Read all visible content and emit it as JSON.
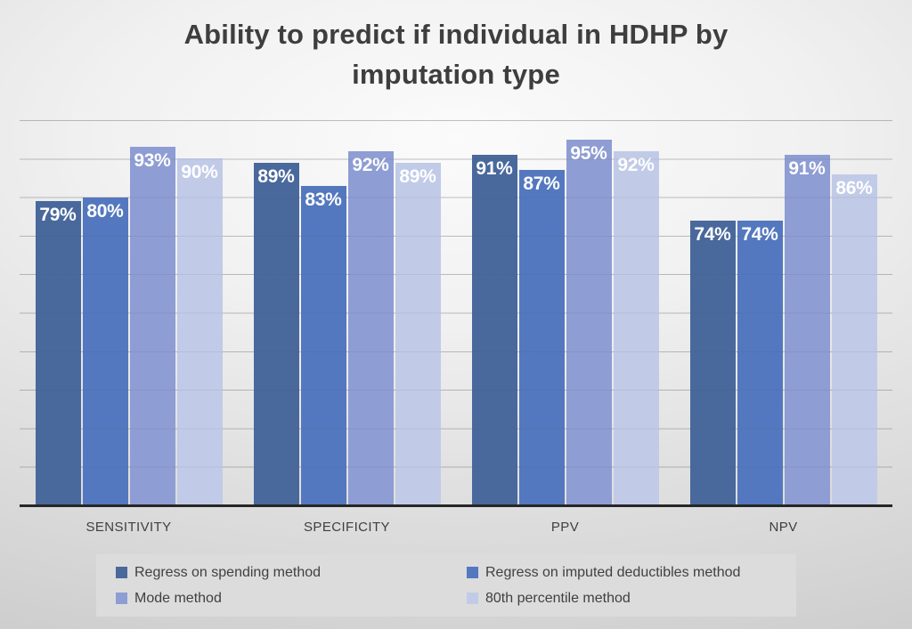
{
  "title": "Ability to predict if individual in HDHP by imputation type",
  "title_lines": {
    "line1": "Ability to predict if individual in HDHP by",
    "line2": "imputation type"
  },
  "chart_data": {
    "type": "bar",
    "title": "Ability to predict if individual in HDHP by imputation type",
    "categories": [
      "SENSITIVITY",
      "SPECIFICITY",
      "PPV",
      "NPV"
    ],
    "series": [
      {
        "name": "Regress on spending method",
        "color": "#49699c",
        "values": [
          79,
          89,
          91,
          74
        ]
      },
      {
        "name": "Regress on imputed deductibles method",
        "color": "#5478bf",
        "values": [
          80,
          83,
          87,
          74
        ]
      },
      {
        "name": "Mode method",
        "color": "#8e9dd3",
        "values": [
          93,
          92,
          95,
          91
        ]
      },
      {
        "name": "80th percentile method",
        "color": "#c1cbe8",
        "values": [
          90,
          89,
          92,
          86
        ]
      }
    ],
    "ylim": [
      0,
      100
    ],
    "gridline_step_percent": 10,
    "grid": true,
    "data_label_format": "percent",
    "legend_position": "bottom",
    "xlabel": "",
    "ylabel": ""
  },
  "colors": {
    "title_text": "#3e3e3e",
    "category_text": "#3f3f3f",
    "data_label_text": "#ffffff",
    "axis_line": "#262626",
    "gridline": "#a9a9a9",
    "legend_background": "#dcdcdc",
    "background_inner": "#fbfbfb",
    "background_outer": "#c8c8c8"
  }
}
